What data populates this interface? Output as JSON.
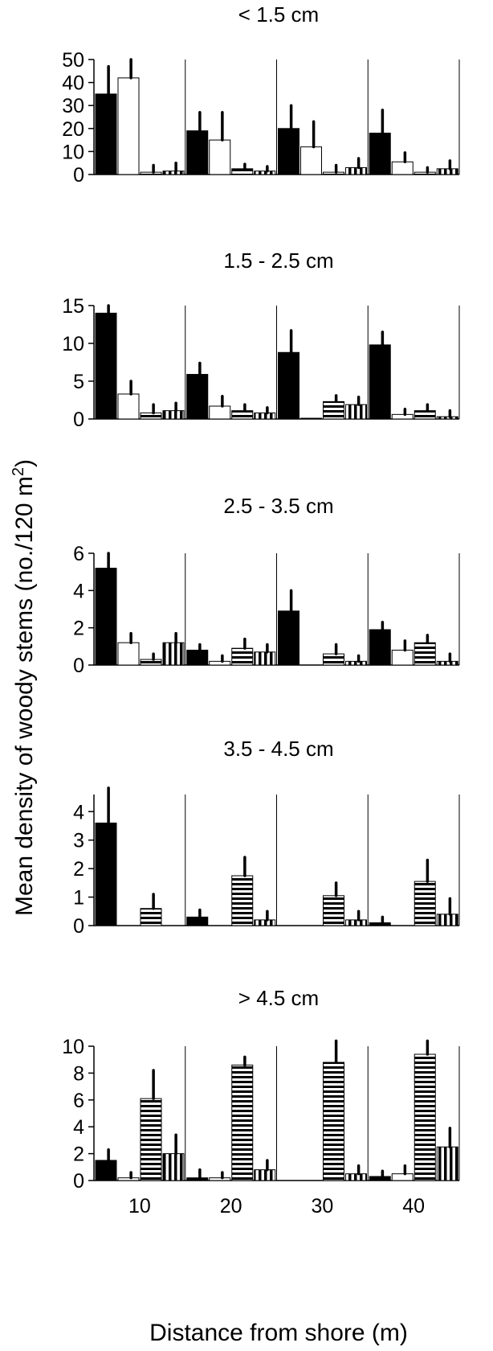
{
  "chart_data": {
    "type": "bar",
    "ylabel": "Mean density of woody stems (no./120 m",
    "ylabel_sup": "2",
    "ylabel_close": ")",
    "xlabel": "Distance from shore (m)",
    "x_categories": [
      "10",
      "20",
      "30",
      "40"
    ],
    "series_fills": [
      "solid-black",
      "white",
      "horizontal-stripes",
      "vertical-stripes"
    ],
    "panels": [
      {
        "title": "< 1.5 cm",
        "ylim": [
          0,
          50
        ],
        "yticks": [
          "0",
          "10",
          "20",
          "30",
          "40",
          "50"
        ],
        "groups": [
          {
            "values": [
              35,
              42,
              1,
              1.5
            ],
            "errors": [
              12,
              8,
              3,
              3.5
            ]
          },
          {
            "values": [
              19,
              15,
              2.5,
              1.5
            ],
            "errors": [
              8,
              12,
              2,
              2
            ]
          },
          {
            "values": [
              20,
              12,
              1,
              3
            ],
            "errors": [
              10,
              11,
              3,
              4
            ]
          },
          {
            "values": [
              18,
              5.5,
              1,
              2.5
            ],
            "errors": [
              10,
              4,
              2,
              3.5
            ]
          }
        ]
      },
      {
        "title": "1.5 - 2.5 cm",
        "ylim": [
          0,
          15
        ],
        "yticks": [
          "0",
          "5",
          "10",
          "15"
        ],
        "groups": [
          {
            "values": [
              14,
              3.3,
              0.8,
              1.1
            ],
            "errors": [
              1,
              1.7,
              1.1,
              1
            ]
          },
          {
            "values": [
              5.9,
              1.7,
              1.1,
              0.8
            ],
            "errors": [
              1.5,
              1.3,
              0.8,
              0.7
            ]
          },
          {
            "values": [
              8.8,
              0.1,
              2.3,
              1.9
            ],
            "errors": [
              2.9,
              0,
              0.8,
              1
            ]
          },
          {
            "values": [
              9.8,
              0.6,
              1.1,
              0.3
            ],
            "errors": [
              1.7,
              0.7,
              0.8,
              0.8
            ]
          }
        ]
      },
      {
        "title": "2.5 - 3.5 cm",
        "ylim": [
          0,
          6
        ],
        "yticks": [
          "0",
          "2",
          "4",
          "6"
        ],
        "groups": [
          {
            "values": [
              5.2,
              1.2,
              0.3,
              1.2
            ],
            "errors": [
              0.8,
              0.5,
              0.3,
              0.5
            ]
          },
          {
            "values": [
              0.8,
              0.2,
              0.9,
              0.7
            ],
            "errors": [
              0.3,
              0.3,
              0.5,
              0.4
            ]
          },
          {
            "values": [
              2.9,
              0,
              0.6,
              0.2
            ],
            "errors": [
              1.1,
              0,
              0.5,
              0.3
            ]
          },
          {
            "values": [
              1.9,
              0.8,
              1.2,
              0.2
            ],
            "errors": [
              0.4,
              0.5,
              0.4,
              0.4
            ]
          }
        ]
      },
      {
        "title": "3.5 - 4.5 cm",
        "ylim": [
          0,
          4.6
        ],
        "yticks": [
          "0",
          "1",
          "2",
          "3",
          "4"
        ],
        "groups": [
          {
            "values": [
              3.6,
              0,
              0.6,
              0
            ],
            "errors": [
              1.8,
              0,
              0.5,
              0
            ]
          },
          {
            "values": [
              0.3,
              0,
              1.75,
              0.2
            ],
            "errors": [
              0.25,
              0,
              0.65,
              0.3
            ]
          },
          {
            "values": [
              0,
              0,
              1.05,
              0.2
            ],
            "errors": [
              0,
              0,
              0.45,
              0.3
            ]
          },
          {
            "values": [
              0.1,
              0,
              1.55,
              0.4
            ],
            "errors": [
              0.2,
              0,
              0.75,
              0.55
            ]
          }
        ]
      },
      {
        "title": "> 4.5 cm",
        "ylim": [
          0,
          10
        ],
        "yticks": [
          "0",
          "2",
          "4",
          "6",
          "8",
          "10"
        ],
        "groups": [
          {
            "values": [
              1.5,
              0.2,
              6.1,
              2
            ],
            "errors": [
              0.8,
              0.4,
              2.1,
              1.4
            ]
          },
          {
            "values": [
              0.2,
              0.2,
              8.6,
              0.8
            ],
            "errors": [
              0.6,
              0.4,
              0.6,
              0.7
            ]
          },
          {
            "values": [
              0,
              0,
              8.8,
              0.5
            ],
            "errors": [
              0,
              0,
              1.6,
              0.6
            ]
          },
          {
            "values": [
              0.3,
              0.5,
              9.4,
              2.5
            ],
            "errors": [
              0.4,
              0.6,
              1,
              1.4
            ]
          }
        ]
      }
    ]
  }
}
